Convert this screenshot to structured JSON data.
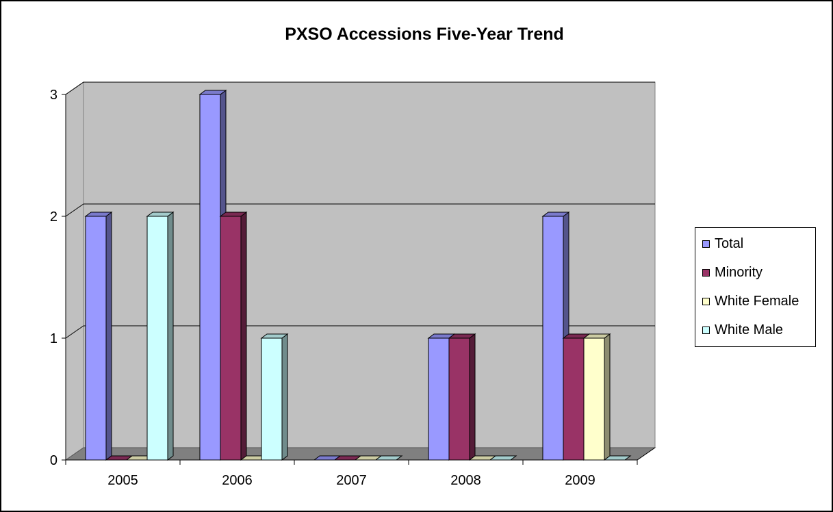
{
  "chart_data": {
    "type": "bar",
    "title": "PXSO Accessions Five-Year Trend",
    "categories": [
      "2005",
      "2006",
      "2007",
      "2008",
      "2009"
    ],
    "series": [
      {
        "name": "Total",
        "values": [
          2,
          3,
          0,
          1,
          2
        ],
        "color": "#9999ff"
      },
      {
        "name": "Minority",
        "values": [
          0,
          2,
          0,
          1,
          1
        ],
        "color": "#993366"
      },
      {
        "name": "White Female",
        "values": [
          0,
          0,
          0,
          0,
          1
        ],
        "color": "#ffffcc"
      },
      {
        "name": "White Male",
        "values": [
          2,
          1,
          0,
          0,
          0
        ],
        "color": "#ccffff"
      }
    ],
    "yticks": [
      "0",
      "1",
      "2",
      "3"
    ],
    "ylim": [
      0,
      3
    ],
    "grid": true,
    "legend_position": "right",
    "style": "3d-clustered-column",
    "wall_color": "#c0c0c0",
    "floor_color": "#808080"
  }
}
